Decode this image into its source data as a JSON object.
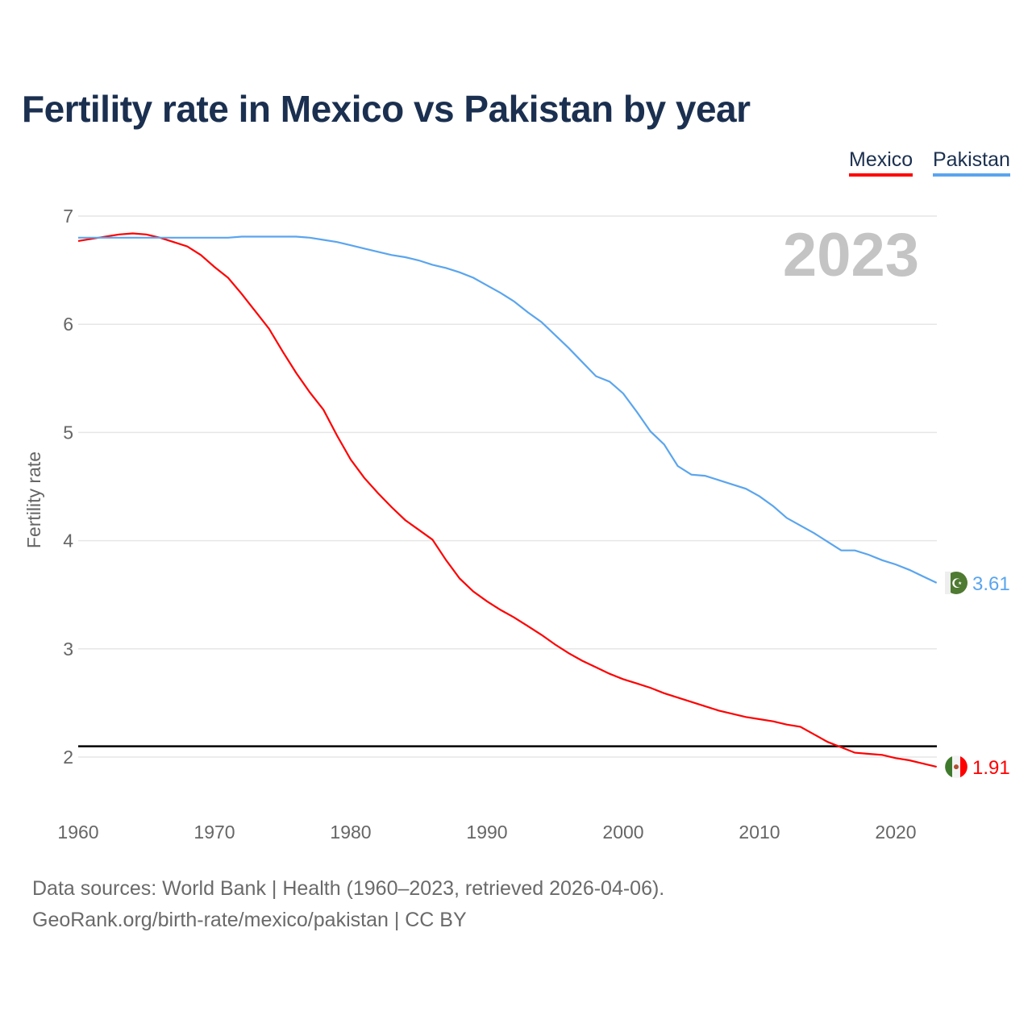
{
  "chart_data": {
    "type": "line",
    "title": "Fertility rate in Mexico vs Pakistan by year",
    "xlabel": "",
    "ylabel": "Fertility rate",
    "xlim": [
      1960,
      2023
    ],
    "ylim": [
      1.5,
      7
    ],
    "xticks": [
      "1960",
      "1970",
      "1980",
      "1990",
      "2000",
      "2010",
      "2020"
    ],
    "yticks": [
      "2",
      "3",
      "4",
      "5",
      "6",
      "7"
    ],
    "year_label": "2023",
    "reference_line": 2.1,
    "legend_position": "top-right",
    "x": [
      1960,
      1961,
      1962,
      1963,
      1964,
      1965,
      1966,
      1967,
      1968,
      1969,
      1970,
      1971,
      1972,
      1973,
      1974,
      1975,
      1976,
      1977,
      1978,
      1979,
      1980,
      1981,
      1982,
      1983,
      1984,
      1985,
      1986,
      1987,
      1988,
      1989,
      1990,
      1991,
      1992,
      1993,
      1994,
      1995,
      1996,
      1997,
      1998,
      1999,
      2000,
      2001,
      2002,
      2003,
      2004,
      2005,
      2006,
      2007,
      2008,
      2009,
      2010,
      2011,
      2012,
      2013,
      2014,
      2015,
      2016,
      2017,
      2018,
      2019,
      2020,
      2021,
      2022,
      2023
    ],
    "series": [
      {
        "name": "Mexico",
        "color": "#ff0000",
        "end_label": "1.91",
        "values": [
          6.77,
          6.79,
          6.81,
          6.83,
          6.84,
          6.83,
          6.8,
          6.76,
          6.72,
          6.64,
          6.53,
          6.43,
          6.28,
          6.12,
          5.96,
          5.75,
          5.55,
          5.37,
          5.21,
          4.97,
          4.75,
          4.58,
          4.44,
          4.31,
          4.19,
          4.1,
          4.01,
          3.82,
          3.65,
          3.53,
          3.44,
          3.36,
          3.29,
          3.21,
          3.13,
          3.04,
          2.96,
          2.89,
          2.83,
          2.77,
          2.72,
          2.68,
          2.64,
          2.59,
          2.55,
          2.51,
          2.47,
          2.43,
          2.4,
          2.37,
          2.35,
          2.33,
          2.3,
          2.28,
          2.21,
          2.14,
          2.09,
          2.04,
          2.03,
          2.02,
          1.99,
          1.97,
          1.94,
          1.91
        ]
      },
      {
        "name": "Pakistan",
        "color": "#5aa5ee",
        "end_label": "3.61",
        "values": [
          6.8,
          6.8,
          6.8,
          6.8,
          6.8,
          6.8,
          6.8,
          6.8,
          6.8,
          6.8,
          6.8,
          6.8,
          6.81,
          6.81,
          6.81,
          6.81,
          6.81,
          6.8,
          6.78,
          6.76,
          6.73,
          6.7,
          6.67,
          6.64,
          6.62,
          6.59,
          6.55,
          6.52,
          6.48,
          6.43,
          6.36,
          6.29,
          6.21,
          6.11,
          6.02,
          5.9,
          5.78,
          5.65,
          5.52,
          5.47,
          5.36,
          5.19,
          5.01,
          4.89,
          4.69,
          4.61,
          4.6,
          4.56,
          4.52,
          4.48,
          4.41,
          4.32,
          4.21,
          4.14,
          4.07,
          3.99,
          3.91,
          3.91,
          3.87,
          3.82,
          3.78,
          3.73,
          3.67,
          3.61
        ]
      }
    ]
  },
  "footer": {
    "source_line": "Data sources: World Bank | Health (1960–2023, retrieved 2026-04-06).",
    "credit_line": "GeoRank.org/birth-rate/mexico/pakistan | CC BY"
  }
}
